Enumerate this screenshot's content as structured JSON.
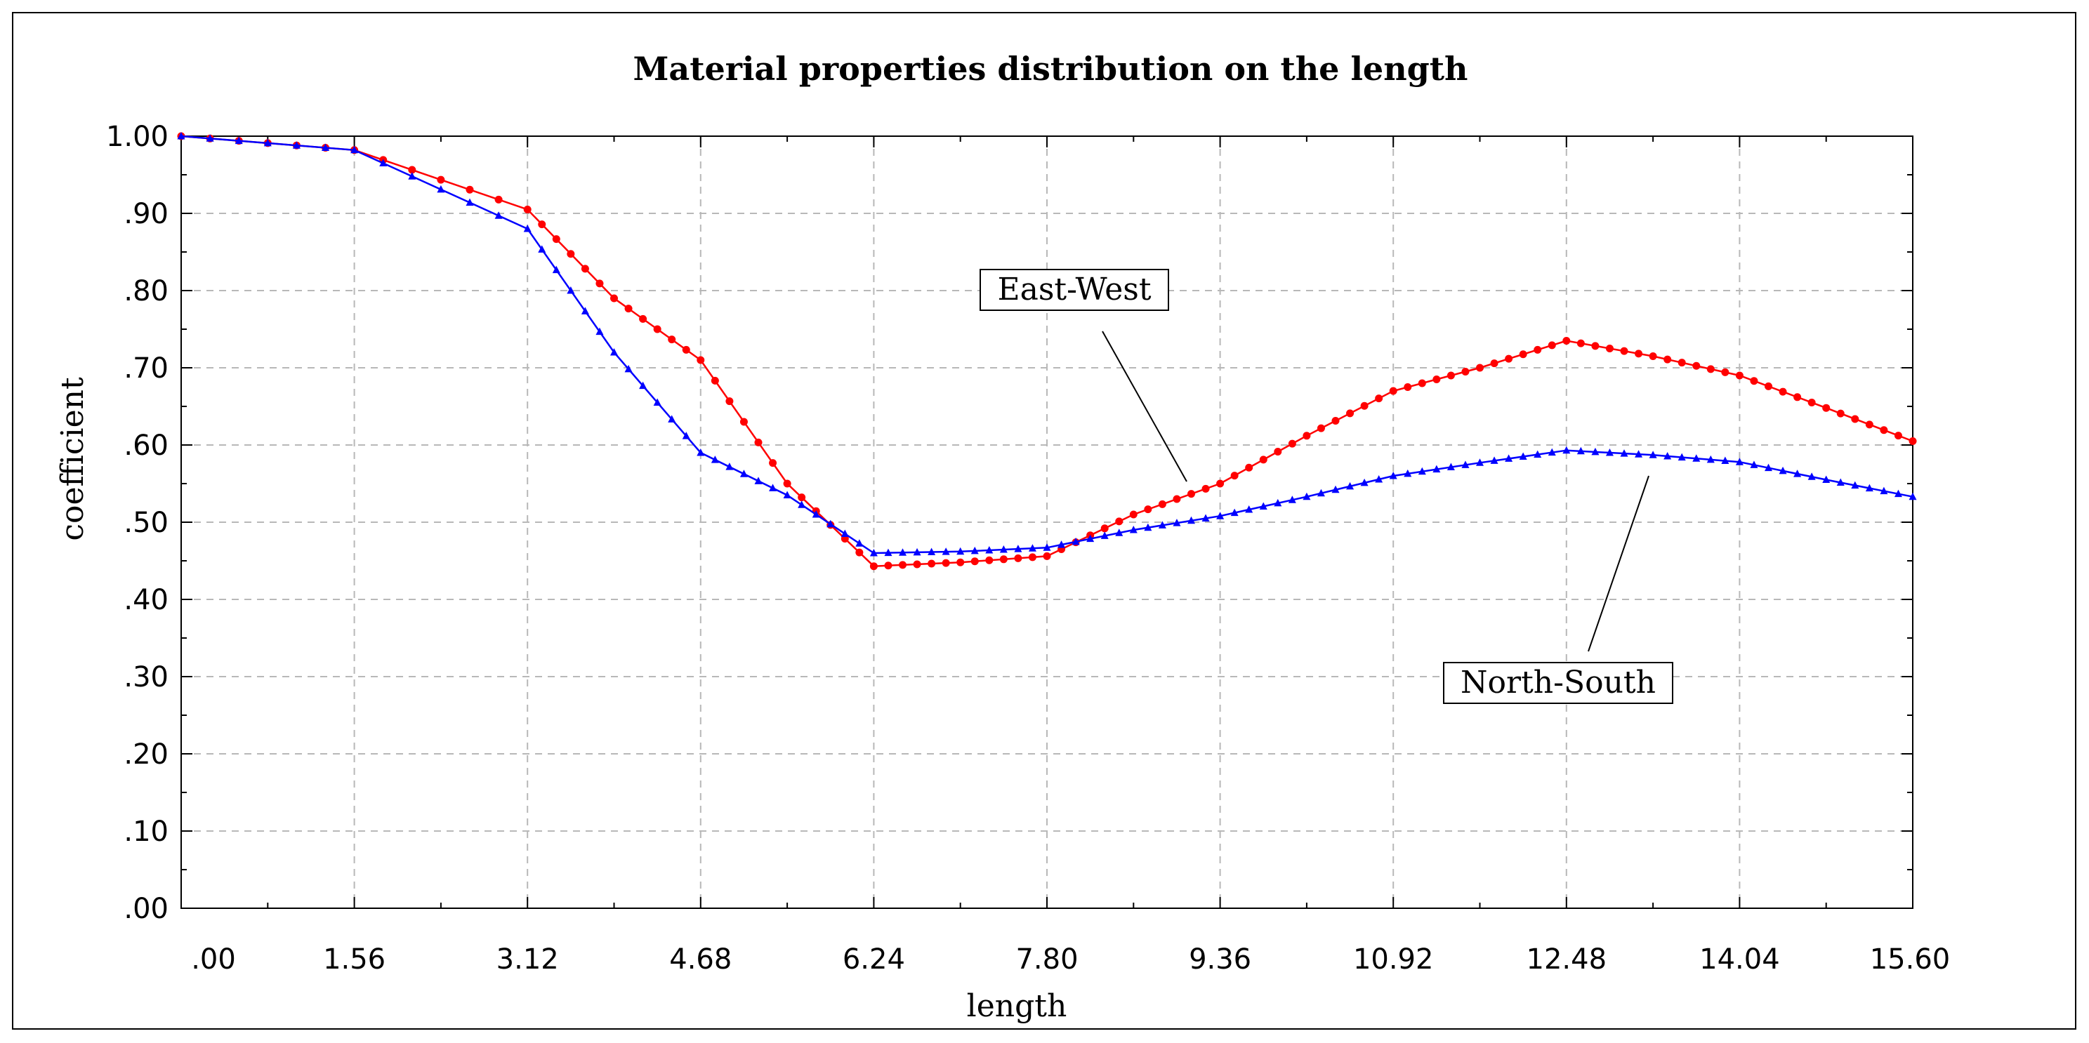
{
  "chart_data": {
    "type": "line",
    "title": "Material properties distribution on the length",
    "xlabel": "length",
    "ylabel": "coefficient",
    "xlim": [
      0,
      15.6
    ],
    "ylim": [
      0,
      1.0
    ],
    "x_ticks": [
      ".00",
      "1.56",
      "3.12",
      "4.68",
      "6.24",
      "7.80",
      "9.36",
      "10.92",
      "12.48",
      "14.04",
      "15.60"
    ],
    "y_ticks": [
      ".00",
      ".10",
      ".20",
      ".30",
      ".40",
      ".50",
      ".60",
      ".70",
      ".80",
      ".90",
      "1.00"
    ],
    "grid": true,
    "series": [
      {
        "name": "East-West",
        "color": "#ff0000",
        "marker": "circle",
        "x": [
          0,
          1.56,
          3.12,
          3.9,
          4.68,
          5.46,
          6.24,
          7.02,
          7.8,
          8.58,
          9.36,
          10.14,
          10.92,
          11.7,
          12.48,
          13.26,
          14.04,
          14.82,
          15.6
        ],
        "y": [
          1.0,
          0.982,
          0.905,
          0.79,
          0.71,
          0.55,
          0.443,
          0.448,
          0.456,
          0.51,
          0.55,
          0.612,
          0.67,
          0.7,
          0.735,
          0.715,
          0.69,
          0.648,
          0.605
        ]
      },
      {
        "name": "North-South",
        "color": "#0000ff",
        "marker": "triangle",
        "x": [
          0,
          1.56,
          3.12,
          3.9,
          4.68,
          5.46,
          6.24,
          7.02,
          7.8,
          8.58,
          9.36,
          10.14,
          10.92,
          11.7,
          12.48,
          13.26,
          14.04,
          14.82,
          15.6
        ],
        "y": [
          1.0,
          0.982,
          0.88,
          0.72,
          0.59,
          0.535,
          0.46,
          0.462,
          0.467,
          0.49,
          0.508,
          0.533,
          0.56,
          0.577,
          0.593,
          0.587,
          0.578,
          0.555,
          0.533
        ]
      }
    ],
    "annotations": [
      {
        "text": "East-West",
        "series": "East-West"
      },
      {
        "text": "North-South",
        "series": "North-South"
      }
    ]
  }
}
